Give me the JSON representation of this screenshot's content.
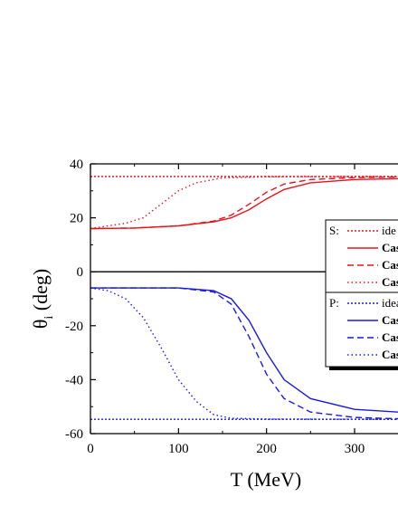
{
  "chart_data": {
    "type": "line",
    "xlabel": "T (MeV)",
    "ylabel_main": "θ",
    "ylabel_sub": "i",
    "ylabel_unit": "(deg)",
    "xlim": [
      0,
      350
    ],
    "ylim": [
      -60,
      40
    ],
    "x_ticks": [
      0,
      100,
      200,
      300
    ],
    "y_ticks": [
      40,
      20,
      0,
      -20,
      -40,
      -60
    ],
    "colors": {
      "S": "#e8141c",
      "P": "#1a1ae6"
    },
    "legend_S": {
      "title": "S:",
      "entries": [
        {
          "label": "ide",
          "style": "dotted",
          "bold": false
        },
        {
          "label": "Cas",
          "style": "solid",
          "bold": true
        },
        {
          "label": "Cas",
          "style": "dashed",
          "bold": true
        },
        {
          "label": "Cas",
          "style": "dotted",
          "bold": true
        }
      ]
    },
    "legend_P": {
      "title": "P:",
      "entries": [
        {
          "label": "idea",
          "style": "dotted",
          "bold": false
        },
        {
          "label": "Cas",
          "style": "solid",
          "bold": true
        },
        {
          "label": "Cas",
          "style": "dashed",
          "bold": true
        },
        {
          "label": "Cas",
          "style": "dotted",
          "bold": true
        }
      ]
    },
    "series": [
      {
        "group": "S",
        "style": "short-dotted",
        "x": [
          0,
          350
        ],
        "y": [
          35.3,
          35.3
        ]
      },
      {
        "group": "S",
        "style": "solid",
        "x": [
          0,
          50,
          100,
          140,
          160,
          180,
          200,
          220,
          250,
          300,
          350
        ],
        "y": [
          16,
          16.2,
          17,
          18.5,
          20,
          23,
          27,
          30.5,
          33,
          34.2,
          34.5
        ]
      },
      {
        "group": "S",
        "style": "dashed",
        "x": [
          0,
          50,
          100,
          140,
          160,
          180,
          200,
          220,
          250,
          300,
          350
        ],
        "y": [
          16,
          16.2,
          17,
          18.8,
          21,
          25,
          29.5,
          32.5,
          34.2,
          34.9,
          35.1
        ]
      },
      {
        "group": "S",
        "style": "dotted",
        "x": [
          0,
          20,
          40,
          60,
          80,
          100,
          120,
          150,
          200,
          350
        ],
        "y": [
          16,
          17,
          18,
          20,
          25,
          30,
          33,
          34.8,
          35.2,
          35.3
        ]
      },
      {
        "group": "P",
        "style": "short-dotted",
        "x": [
          0,
          350
        ],
        "y": [
          -54.7,
          -54.7
        ]
      },
      {
        "group": "P",
        "style": "solid",
        "x": [
          0,
          100,
          140,
          160,
          180,
          200,
          220,
          250,
          300,
          350
        ],
        "y": [
          -6,
          -6,
          -7,
          -10,
          -18,
          -30,
          -40,
          -47,
          -51,
          -52
        ]
      },
      {
        "group": "P",
        "style": "dashed",
        "x": [
          0,
          100,
          140,
          160,
          180,
          200,
          220,
          250,
          300,
          350
        ],
        "y": [
          -6,
          -6,
          -7.5,
          -12,
          -24,
          -38,
          -47,
          -52,
          -54,
          -54.5
        ]
      },
      {
        "group": "P",
        "style": "dotted",
        "x": [
          0,
          20,
          40,
          60,
          80,
          100,
          120,
          140,
          160,
          200,
          350
        ],
        "y": [
          -6,
          -7,
          -10,
          -17,
          -28,
          -40,
          -48,
          -53,
          -54.3,
          -54.6,
          -54.7
        ]
      }
    ]
  }
}
